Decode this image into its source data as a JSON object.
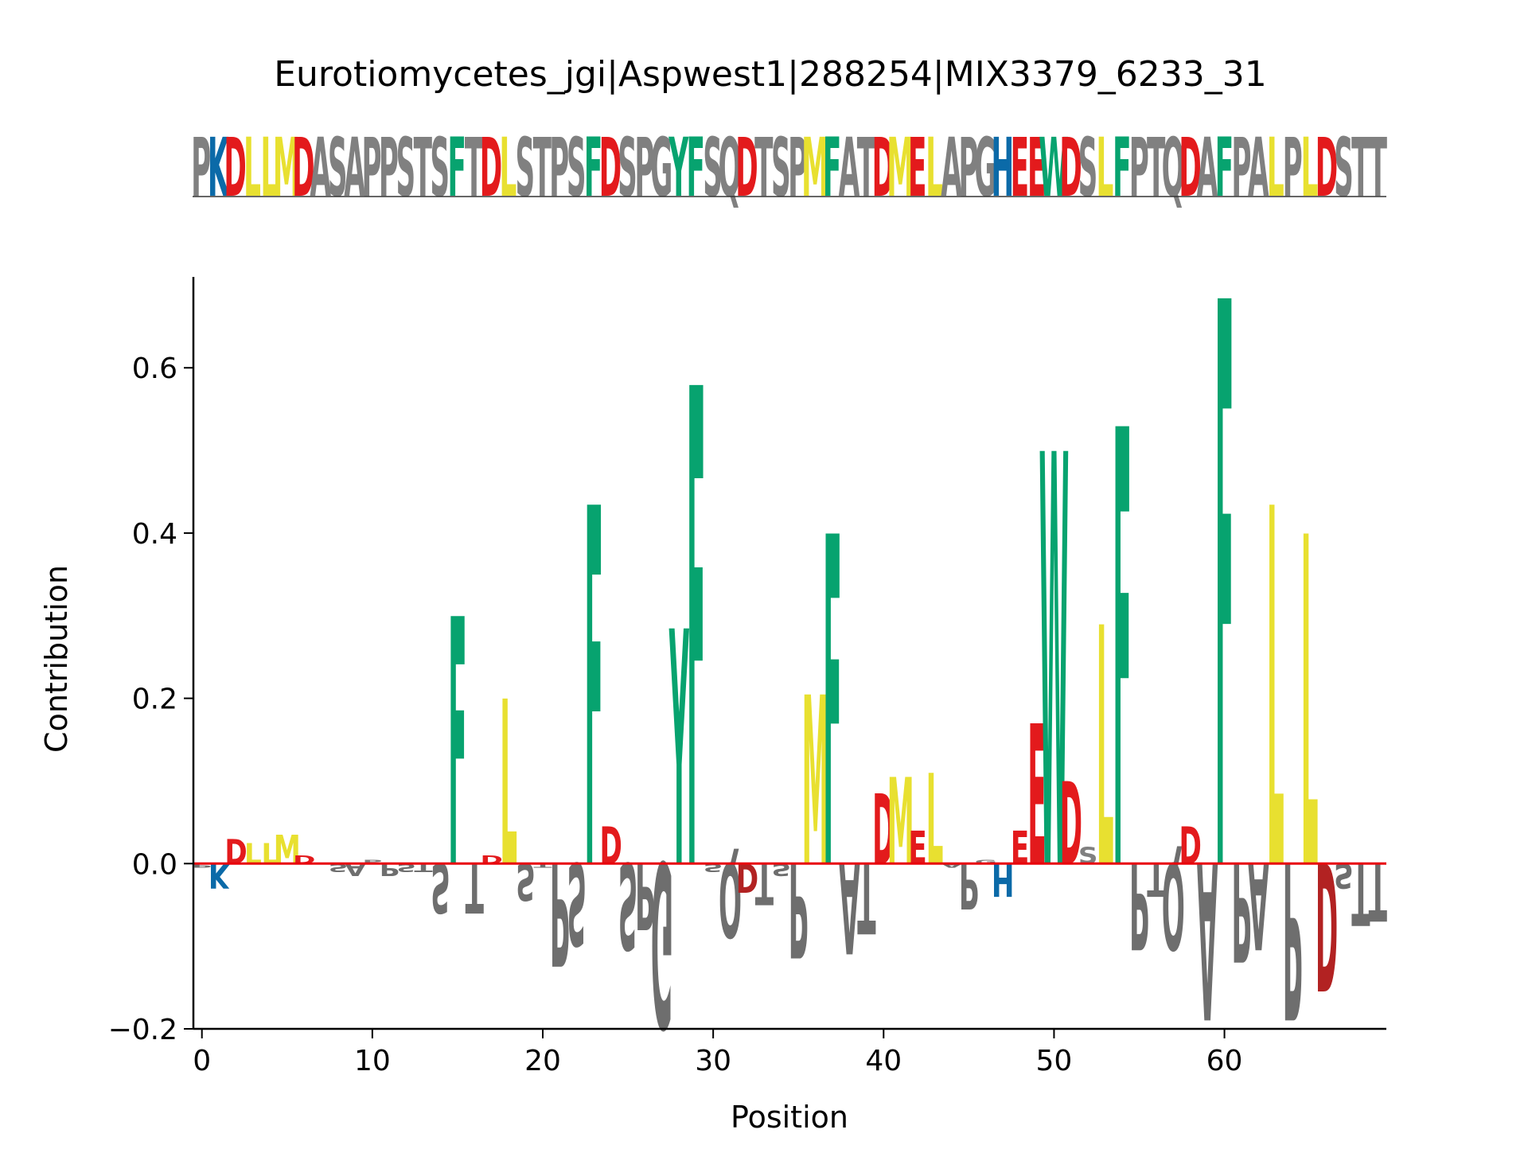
{
  "chart_data": {
    "type": "sequence-logo",
    "title": "Eurotiomycetes_jgi|Aspwest1|288254|MIX3379_6233_31",
    "sequence": "PKDLLMDASAPPSTSFTDLSTPSFDSPGYFSQDTSPMFATDMELAPGHEEWDSLFPTQDAFPALPLDSTT",
    "xlabel": "Position",
    "ylabel": "Contribution",
    "xlim": [
      -0.5,
      69.5
    ],
    "ylim": [
      -0.2,
      0.71
    ],
    "xticks": [
      0,
      10,
      20,
      30,
      40,
      50,
      60
    ],
    "xtick_labels": [
      "0",
      "10",
      "20",
      "30",
      "40",
      "50",
      "60"
    ],
    "yticks": [
      -0.2,
      0.0,
      0.2,
      0.4,
      0.6
    ],
    "ytick_labels": [
      "−0.2",
      "0.0",
      "0.2",
      "0.4",
      "0.6"
    ],
    "baseline_color": "#e8000b",
    "colors": {
      "gray": "#808080",
      "blue": "#0b6aa8",
      "red": "#e31a1c",
      "darkred": "#b22222",
      "yellow": "#e8e030",
      "green": "#07a36f"
    },
    "residue_colors": {
      "D": "red",
      "E": "red",
      "K": "blue",
      "H": "blue",
      "R": "blue",
      "L": "yellow",
      "M": "yellow",
      "F": "green",
      "Y": "green",
      "W": "green"
    },
    "contributions": [
      -0.005,
      -0.03,
      0.03,
      0.025,
      0.025,
      0.035,
      0.01,
      0.0,
      -0.01,
      -0.015,
      0.005,
      -0.015,
      -0.01,
      -0.01,
      -0.06,
      0.3,
      -0.06,
      0.01,
      0.2,
      -0.045,
      -0.005,
      -0.125,
      -0.1,
      0.435,
      0.045,
      -0.105,
      -0.08,
      -0.2,
      0.285,
      0.58,
      -0.01,
      -0.09,
      -0.035,
      -0.05,
      -0.015,
      -0.115,
      0.205,
      0.4,
      -0.11,
      -0.085,
      0.085,
      0.105,
      0.04,
      0.11,
      -0.005,
      -0.055,
      0.005,
      -0.04,
      0.04,
      0.17,
      0.5,
      0.1,
      0.02,
      0.29,
      0.53,
      -0.105,
      -0.04,
      -0.105,
      0.045,
      -0.19,
      0.685,
      -0.12,
      -0.105,
      0.435,
      -0.19,
      0.4,
      -0.155,
      -0.03,
      -0.075,
      -0.07
    ]
  }
}
